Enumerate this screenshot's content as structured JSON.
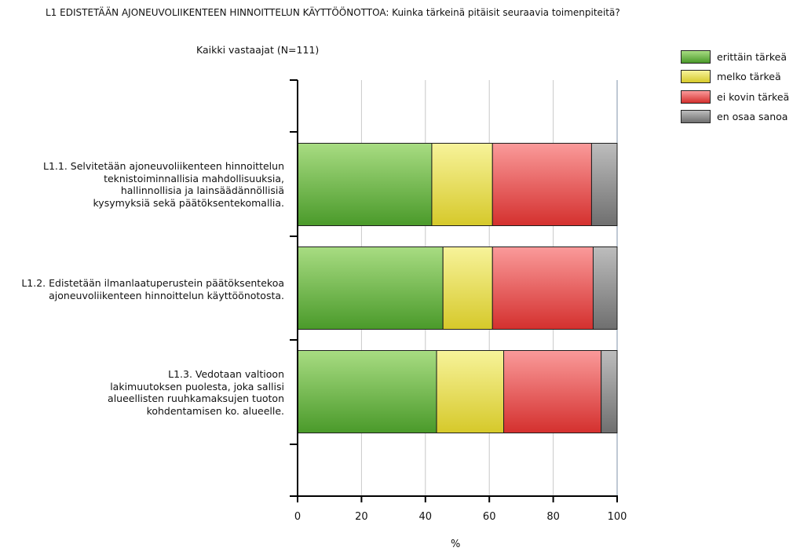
{
  "title": "L1 EDISTETÄÄN AJONEUVOLIIKENTEEN HINNOITTELUN KÄYTTÖÖNOTTOA: Kuinka tärkeinä pitäisit seuraavia toimenpiteitä?",
  "subtitle": "Kaikki vastaajat (N=111)",
  "chart_data": {
    "type": "bar",
    "orientation": "horizontal",
    "stacked": true,
    "categories": [
      [
        "L1.1. Selvitetään ajoneuvoliikenteen hinnoittelun",
        "teknistoiminnallisia mahdollisuuksia,",
        "hallinnollisia ja lainsäädännöllisiä",
        "kysymyksiä sekä päätöksentekomallia."
      ],
      [
        "L1.2. Edistetään ilmanlaatuperustein päätöksentekoa",
        "ajoneuvoliikenteen hinnoittelun käyttöönotosta."
      ],
      [
        "L1.3. Vedotaan valtioon",
        "lakimuutoksen puolesta, joka sallisi",
        "alueellisten ruuhkamaksujen tuoton",
        "kohdentamisen ko. alueelle."
      ]
    ],
    "series": [
      {
        "name": "erittäin tärkeä",
        "values": [
          42,
          45.5,
          43.5
        ],
        "color": "#5cb338"
      },
      {
        "name": "melko tärkeä",
        "values": [
          19,
          15.5,
          21
        ],
        "color": "#e8e04a"
      },
      {
        "name": "ei kovin tärkeä",
        "values": [
          31,
          31.5,
          30.5
        ],
        "color": "#e84d4d"
      },
      {
        "name": "en osaa sanoa",
        "values": [
          8,
          7.5,
          5
        ],
        "color": "#8a8a8a"
      }
    ],
    "xlabel": "%",
    "xlim": [
      0,
      100
    ],
    "xticks": [
      0,
      20,
      40,
      60,
      80,
      100
    ],
    "grid": true,
    "legend_position": "top-right"
  }
}
